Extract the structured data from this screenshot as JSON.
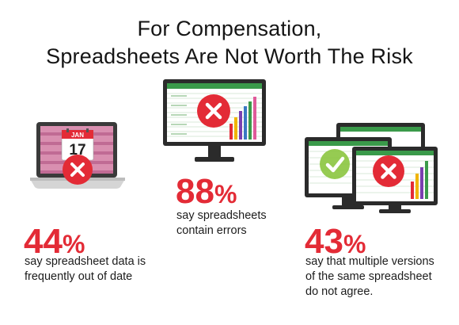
{
  "title": {
    "line1": "For Compensation,",
    "line2": "Spreadsheets Are Not Worth The Risk"
  },
  "stats": [
    {
      "value": "44",
      "unit": "%",
      "lines": [
        "say spreadsheet data is",
        "frequently out of date"
      ]
    },
    {
      "value": "88",
      "unit": "%",
      "lines": [
        "say spreadsheets",
        "contain errors"
      ]
    },
    {
      "value": "43",
      "unit": "%",
      "lines": [
        "say that multiple versions",
        "of the same spreadsheet",
        "do not agree."
      ]
    }
  ],
  "calendar": {
    "month": "JAN",
    "day": "17"
  },
  "icons": [
    "laptop-calendar-icon",
    "monitor-chart-icon",
    "dual-monitor-icon",
    "x-mark-icon",
    "check-mark-icon"
  ],
  "colors": {
    "accent_red": "#e32b36",
    "check_green": "#8bc53f",
    "spreadsheet_green": "#3a9a4a",
    "monitor_dark": "#2b2b2b"
  }
}
